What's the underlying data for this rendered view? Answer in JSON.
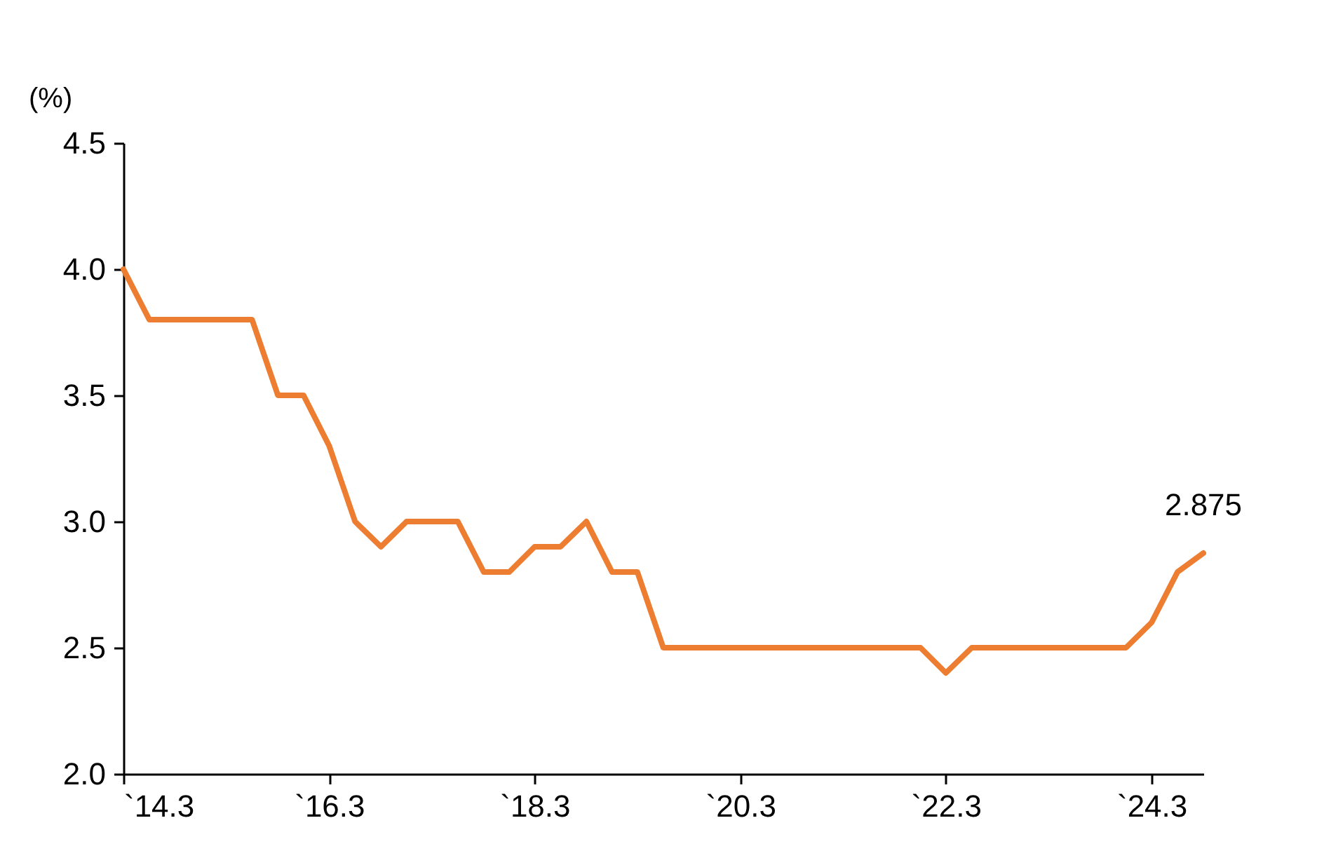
{
  "chart_data": {
    "type": "line",
    "ylabel": "(%)",
    "x": [
      "2014-03",
      "2014-06",
      "2014-09",
      "2014-12",
      "2015-03",
      "2015-06",
      "2015-09",
      "2015-12",
      "2016-03",
      "2016-06",
      "2016-09",
      "2016-12",
      "2017-03",
      "2017-06",
      "2017-09",
      "2017-12",
      "2018-03",
      "2018-06",
      "2018-09",
      "2018-12",
      "2019-03",
      "2019-06",
      "2019-09",
      "2019-12",
      "2020-03",
      "2020-06",
      "2020-09",
      "2020-12",
      "2021-03",
      "2021-06",
      "2021-09",
      "2021-12",
      "2022-03",
      "2022-06",
      "2022-09",
      "2022-12",
      "2023-03",
      "2023-06",
      "2023-09",
      "2023-12",
      "2024-03",
      "2024-06",
      "2024-09"
    ],
    "series": [
      {
        "color": "#ed7d31",
        "values": [
          4.0,
          3.8,
          3.8,
          3.8,
          3.8,
          3.8,
          3.5,
          3.5,
          3.3,
          3.0,
          2.9,
          3.0,
          3.0,
          3.0,
          2.8,
          2.8,
          2.9,
          2.9,
          3.0,
          2.8,
          2.8,
          2.5,
          2.5,
          2.5,
          2.5,
          2.5,
          2.5,
          2.5,
          2.5,
          2.5,
          2.5,
          2.5,
          2.4,
          2.5,
          2.5,
          2.5,
          2.5,
          2.5,
          2.5,
          2.5,
          2.6,
          2.8,
          2.875
        ]
      }
    ],
    "ylim": [
      2.0,
      4.5
    ],
    "yticks": [
      {
        "value": 2,
        "label": "2.0"
      },
      2.5,
      {
        "value": 3,
        "label": "3.0"
      },
      3.5,
      {
        "value": 4,
        "label": "4.0"
      },
      4.5
    ],
    "xlim": [
      "2014-03",
      "2024-09"
    ],
    "xticks": [
      {
        "value": "2014-03",
        "label": "`14.3"
      },
      {
        "value": "2016-03",
        "label": "`16.3"
      },
      {
        "value": "2018-03",
        "label": "`18.3"
      },
      {
        "value": "2020-03",
        "label": "`20.3"
      },
      {
        "value": "2022-03",
        "label": "`22.3"
      },
      {
        "value": "2024-03",
        "label": "`24.3"
      }
    ],
    "annotations": [
      {
        "text": "2.875",
        "x": "2024-09",
        "y": 2.875
      }
    ],
    "grid": false,
    "marker": "none",
    "line_style": "solid"
  }
}
